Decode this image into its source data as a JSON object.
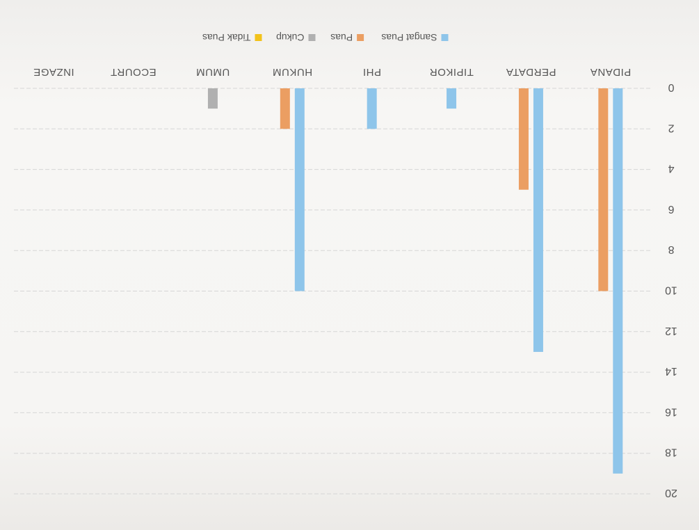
{
  "chart_data": {
    "type": "bar",
    "orientation": "vertical, image rotated 180°",
    "categories": [
      "PIDANA",
      "PERDATA",
      "TIPIKOR",
      "PHI",
      "HUKUM",
      "UMUM",
      "ECOURT",
      "INZAGE"
    ],
    "series": [
      {
        "name": "Sangat Puas",
        "color": "#8ec5ea",
        "values": [
          19,
          13,
          1,
          2,
          10,
          0,
          0,
          0
        ]
      },
      {
        "name": "Puas",
        "color": "#eb9e62",
        "values": [
          10,
          5,
          0,
          0,
          2,
          0,
          0,
          0
        ]
      },
      {
        "name": "Cukup",
        "color": "#b0b0b0",
        "values": [
          0,
          0,
          0,
          0,
          0,
          1,
          0,
          0
        ]
      },
      {
        "name": "Tidak Puas",
        "color": "#f2c21a",
        "values": [
          0,
          0,
          0,
          0,
          0,
          0,
          0,
          0
        ]
      }
    ],
    "yticks": [
      "0",
      "2",
      "4",
      "6",
      "8",
      "10",
      "12",
      "14",
      "16",
      "18",
      "20"
    ],
    "ylim": [
      0,
      20
    ],
    "grid": true,
    "legend_position": "bottom",
    "title": "",
    "xlabel": "",
    "ylabel": ""
  }
}
